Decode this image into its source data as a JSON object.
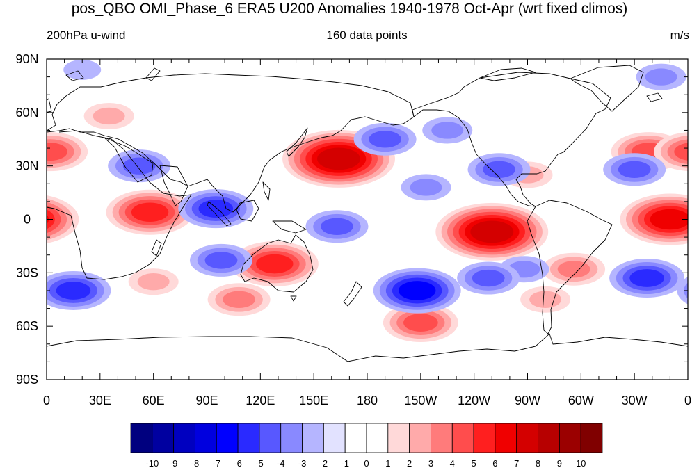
{
  "title": "pos_QBO OMI_Phase_6 ERA5 U200 Anomalies 1940-1978 Oct-Apr (wrt fixed climos)",
  "left_string": "200hPa u-wind",
  "center_string": "160 data points",
  "right_string": "m/s",
  "chart_data": {
    "type": "heatmap",
    "projection": "cylindrical equidistant",
    "lon_range": [
      0,
      360
    ],
    "lat_range": [
      -90,
      90
    ],
    "x_tick_labels": [
      "0",
      "30E",
      "60E",
      "90E",
      "120E",
      "150E",
      "180",
      "150W",
      "120W",
      "90W",
      "60W",
      "30W",
      "0"
    ],
    "y_tick_labels": [
      "90N",
      "60N",
      "30N",
      "0",
      "30S",
      "60S",
      "90S"
    ],
    "colorbar_labels": [
      "-10",
      "-9",
      "-8",
      "-7",
      "-6",
      "-5",
      "-4",
      "-3",
      "-2",
      "-1",
      "0",
      "1",
      "2",
      "3",
      "4",
      "5",
      "6",
      "7",
      "8",
      "9",
      "10"
    ],
    "colorbar_colors": [
      "#00007f",
      "#0000a0",
      "#0000c0",
      "#0000df",
      "#0000ff",
      "#2a2aff",
      "#5858ff",
      "#8989ff",
      "#b5b5ff",
      "#e2e2ff",
      "#ffffff",
      "#ffffff",
      "#ffd9d9",
      "#ffaaaa",
      "#ff7b7b",
      "#ff4d4d",
      "#ff1f1f",
      "#f00000",
      "#d40000",
      "#b70000",
      "#9b0000",
      "#800000"
    ],
    "anomaly_centers": [
      {
        "lon": 164,
        "lat": 34,
        "value": 7
      },
      {
        "lon": 250,
        "lat": -7,
        "value": 7
      },
      {
        "lon": 350,
        "lat": 0,
        "value": 6
      },
      {
        "lon": 58,
        "lat": 4,
        "value": 5
      },
      {
        "lon": 338,
        "lat": 38,
        "value": 4
      },
      {
        "lon": 128,
        "lat": -25,
        "value": 5
      },
      {
        "lon": 210,
        "lat": -58,
        "value": 4
      },
      {
        "lon": 108,
        "lat": -45,
        "value": 3
      },
      {
        "lon": 2,
        "lat": 38,
        "value": 4
      },
      {
        "lon": 35,
        "lat": 58,
        "value": 2
      },
      {
        "lon": 280,
        "lat": -45,
        "value": 2
      },
      {
        "lon": 296,
        "lat": -28,
        "value": 3
      },
      {
        "lon": 270,
        "lat": 25,
        "value": 2
      },
      {
        "lon": 60,
        "lat": -35,
        "value": 2
      },
      {
        "lon": 95,
        "lat": 6,
        "value": -4
      },
      {
        "lon": 52,
        "lat": 30,
        "value": -3
      },
      {
        "lon": 98,
        "lat": -23,
        "value": -3
      },
      {
        "lon": 15,
        "lat": -40,
        "value": -4
      },
      {
        "lon": 208,
        "lat": -40,
        "value": -5
      },
      {
        "lon": 163,
        "lat": -4,
        "value": -3
      },
      {
        "lon": 337,
        "lat": -33,
        "value": -4
      },
      {
        "lon": 330,
        "lat": 28,
        "value": -3
      },
      {
        "lon": 254,
        "lat": 28,
        "value": -3
      },
      {
        "lon": 190,
        "lat": 45,
        "value": -3
      },
      {
        "lon": 213,
        "lat": 18,
        "value": -2
      },
      {
        "lon": 268,
        "lat": -28,
        "value": -2
      },
      {
        "lon": 248,
        "lat": -33,
        "value": -3
      },
      {
        "lon": 225,
        "lat": 50,
        "value": -2
      },
      {
        "lon": 345,
        "lat": 80,
        "value": -2
      },
      {
        "lon": 20,
        "lat": 84,
        "value": -1
      }
    ]
  }
}
